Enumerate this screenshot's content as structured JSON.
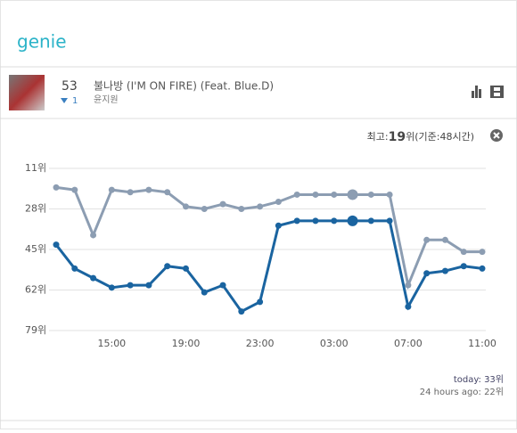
{
  "header": {
    "logo": "genie"
  },
  "song": {
    "rank": 53,
    "change": 1,
    "title": "불나방 (I'M ON FIRE) (Feat. Blue.D)",
    "artist": "윤지원"
  },
  "best": {
    "label": "최고:",
    "rank": 19,
    "suffix": "위(기준:48시간)"
  },
  "chart": {
    "type": "line",
    "categories": [
      null,
      null,
      null,
      "15:00",
      null,
      null,
      null,
      "19:00",
      null,
      null,
      null,
      "23:00",
      null,
      null,
      null,
      "03:00",
      null,
      null,
      null,
      "07:00",
      null,
      null,
      null,
      "11:00"
    ],
    "series": [
      {
        "color": "#8c9db2",
        "values": [
          19,
          20,
          39,
          20,
          21,
          20,
          21,
          27,
          28,
          26,
          28,
          27,
          25,
          22,
          22,
          22,
          22,
          22,
          22,
          60,
          41,
          41,
          46,
          46
        ]
      },
      {
        "color": "#1a64a0",
        "values": [
          43,
          53,
          57,
          61,
          60,
          60,
          52,
          53,
          63,
          60,
          71,
          67,
          35,
          33,
          33,
          33,
          33,
          33,
          33,
          69,
          55,
          54,
          52,
          53
        ]
      }
    ],
    "highlight_index": 16,
    "ylim": [
      11,
      79
    ],
    "y_inverted": true,
    "yticks": [
      {
        "value": 11,
        "label": "11위"
      },
      {
        "value": 28,
        "label": "28위"
      },
      {
        "value": 45,
        "label": "45위"
      },
      {
        "value": 62,
        "label": "62위"
      },
      {
        "value": 79,
        "label": "79위"
      }
    ],
    "grid": true
  },
  "footer": {
    "today": "today: 33위",
    "ago": "24 hours ago: 22위"
  }
}
